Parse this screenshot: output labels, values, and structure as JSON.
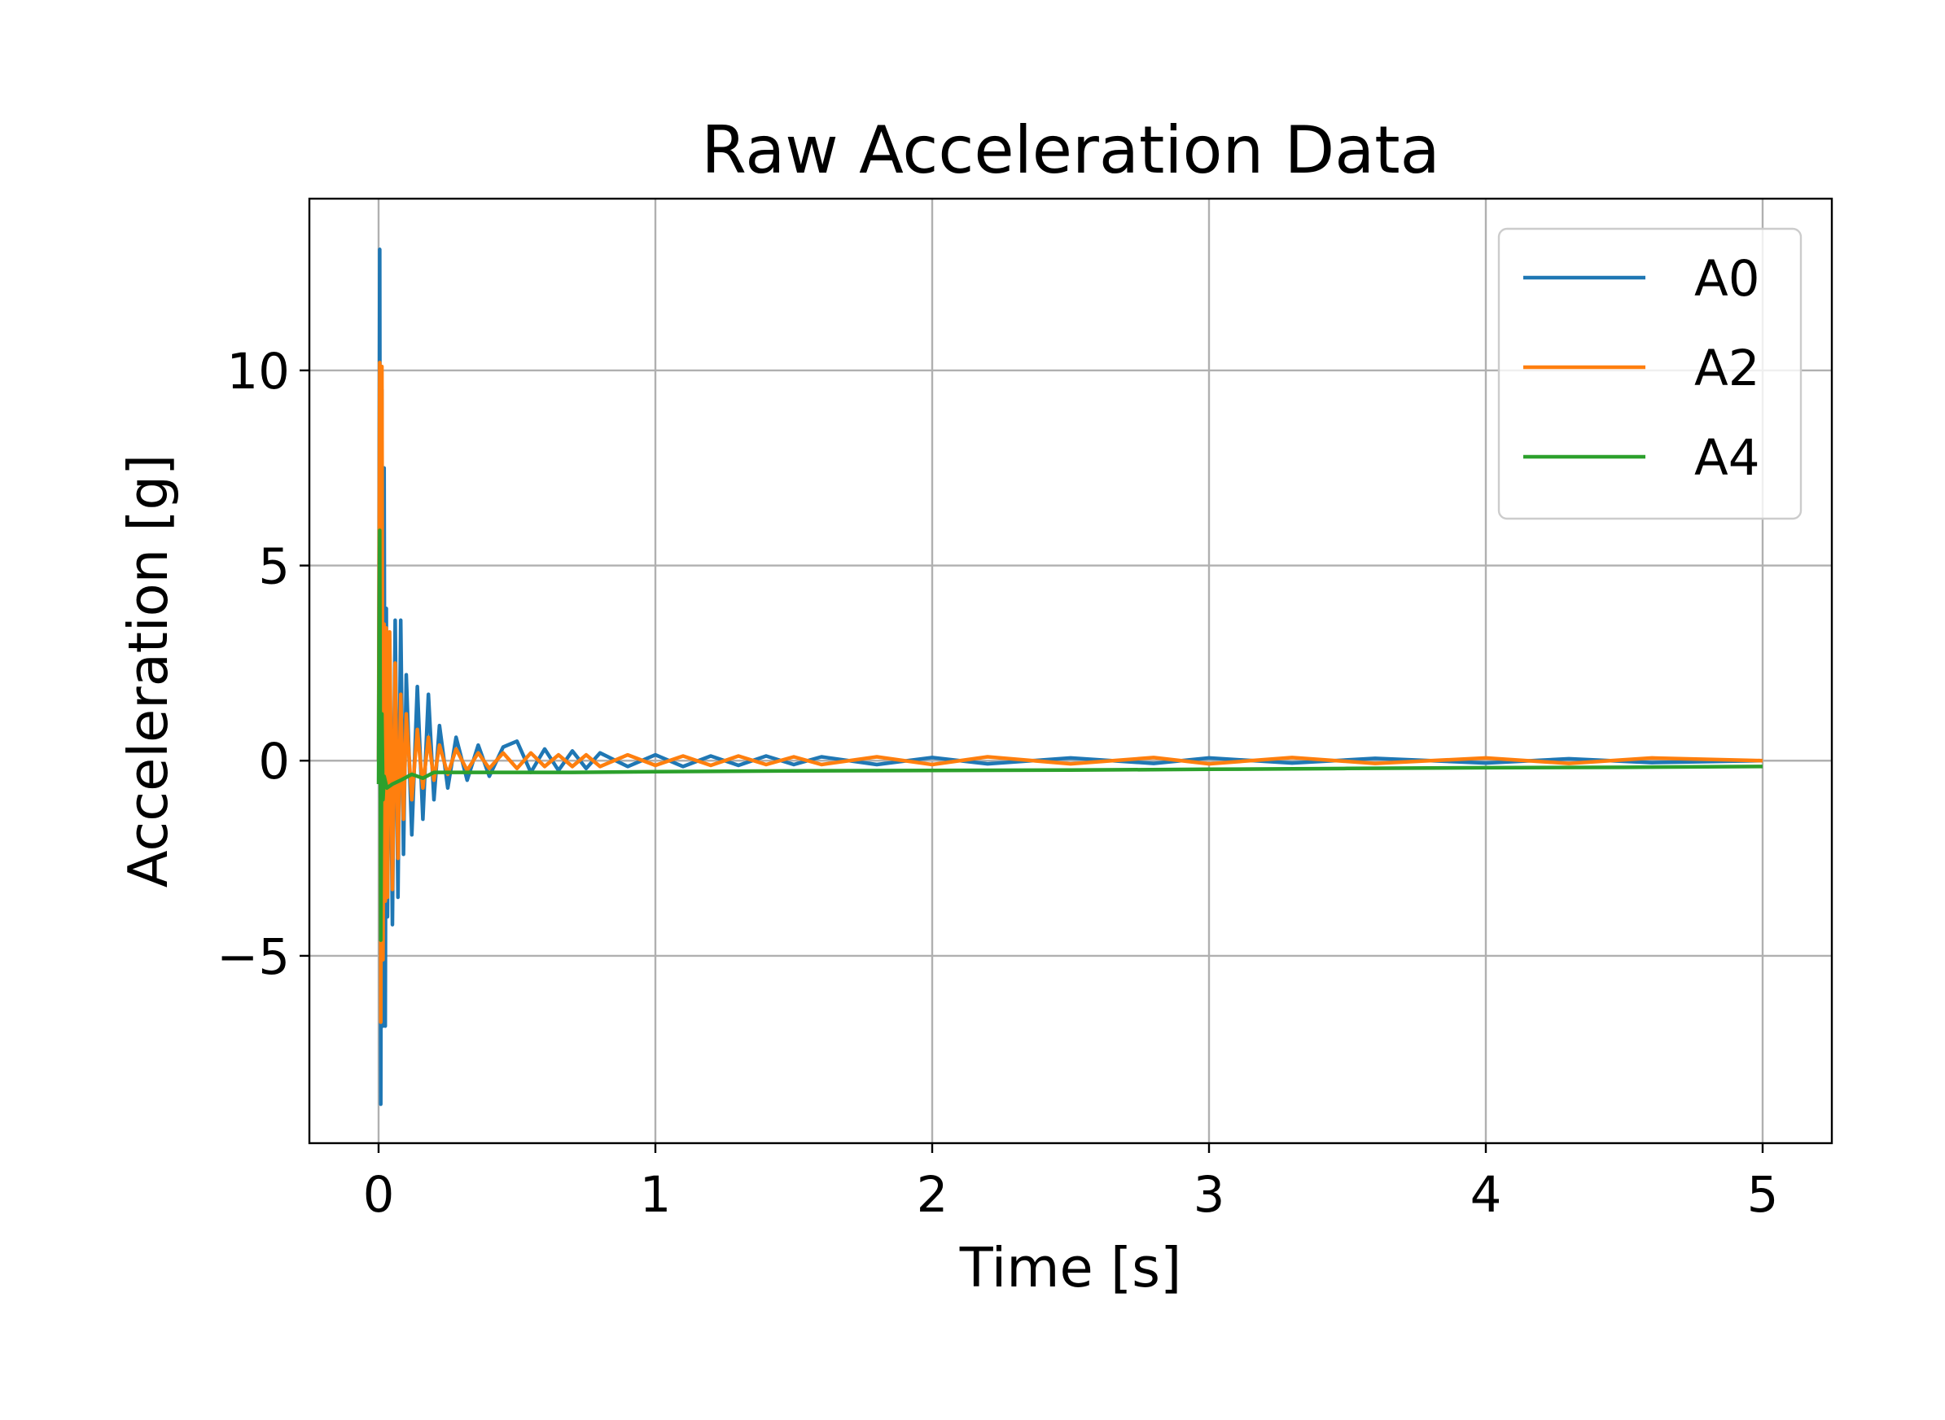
{
  "chart_data": {
    "type": "line",
    "title": "Raw Acceleration Data",
    "xlabel": "Time [s]",
    "ylabel": "Acceleration [g]",
    "xlim": [
      -0.25,
      5.25
    ],
    "ylim": [
      -9.8,
      14.4
    ],
    "xticks": [
      0,
      1,
      2,
      3,
      4,
      5
    ],
    "xtick_labels": [
      "0",
      "1",
      "2",
      "3",
      "4",
      "5"
    ],
    "yticks": [
      -5,
      0,
      5,
      10
    ],
    "ytick_labels": [
      "−5",
      "0",
      "5",
      "10"
    ],
    "grid": true,
    "legend_position": "upper right",
    "series": [
      {
        "name": "A0",
        "color": "#1f77b4",
        "x": [
          0,
          0.004,
          0.008,
          0.012,
          0.016,
          0.02,
          0.024,
          0.028,
          0.032,
          0.04,
          0.05,
          0.06,
          0.07,
          0.08,
          0.09,
          0.1,
          0.12,
          0.14,
          0.16,
          0.18,
          0.2,
          0.22,
          0.25,
          0.28,
          0.32,
          0.36,
          0.4,
          0.45,
          0.5,
          0.55,
          0.6,
          0.65,
          0.7,
          0.75,
          0.8,
          0.9,
          1.0,
          1.1,
          1.2,
          1.3,
          1.4,
          1.5,
          1.6,
          1.8,
          2.0,
          2.2,
          2.5,
          2.8,
          3.0,
          3.3,
          3.6,
          4.0,
          4.3,
          4.6,
          5.0
        ],
        "y": [
          0,
          13.1,
          -8.8,
          9.5,
          -6.8,
          7.5,
          -6.8,
          3.9,
          -4.0,
          3.1,
          -4.2,
          3.6,
          -3.5,
          3.6,
          -2.4,
          2.2,
          -1.9,
          1.9,
          -1.5,
          1.7,
          -1.0,
          0.9,
          -0.7,
          0.6,
          -0.5,
          0.4,
          -0.4,
          0.35,
          0.5,
          -0.3,
          0.3,
          -0.25,
          0.25,
          -0.2,
          0.2,
          -0.15,
          0.15,
          -0.15,
          0.12,
          -0.12,
          0.12,
          -0.1,
          0.1,
          -0.1,
          0.08,
          -0.08,
          0.07,
          -0.07,
          0.07,
          -0.06,
          0.06,
          -0.06,
          0.05,
          -0.05,
          0.0
        ]
      },
      {
        "name": "A2",
        "color": "#ff7f0e",
        "x": [
          0,
          0.004,
          0.008,
          0.012,
          0.016,
          0.02,
          0.024,
          0.028,
          0.032,
          0.04,
          0.05,
          0.06,
          0.07,
          0.08,
          0.09,
          0.1,
          0.12,
          0.14,
          0.16,
          0.18,
          0.2,
          0.22,
          0.25,
          0.28,
          0.32,
          0.36,
          0.4,
          0.45,
          0.5,
          0.55,
          0.6,
          0.65,
          0.7,
          0.75,
          0.8,
          0.9,
          1.0,
          1.1,
          1.2,
          1.3,
          1.4,
          1.5,
          1.6,
          1.8,
          2.0,
          2.2,
          2.5,
          2.8,
          3.0,
          3.3,
          3.6,
          4.0,
          4.3,
          4.6,
          5.0
        ],
        "y": [
          0,
          10.2,
          -6.7,
          10.1,
          -5.1,
          3.5,
          -3.6,
          3.4,
          -3.5,
          3.3,
          -3.3,
          2.5,
          -2.5,
          1.7,
          -1.5,
          1.2,
          -1.0,
          0.8,
          -0.7,
          0.6,
          -0.5,
          0.4,
          -0.35,
          0.3,
          -0.25,
          0.2,
          -0.2,
          0.2,
          -0.2,
          0.2,
          -0.15,
          0.15,
          -0.15,
          0.15,
          -0.15,
          0.15,
          -0.12,
          0.12,
          -0.12,
          0.12,
          -0.1,
          0.1,
          -0.1,
          0.1,
          -0.1,
          0.1,
          -0.08,
          0.08,
          -0.08,
          0.08,
          -0.07,
          0.07,
          -0.07,
          0.07,
          0.0
        ]
      },
      {
        "name": "A4",
        "color": "#2ca02c",
        "x": [
          0,
          0.004,
          0.008,
          0.012,
          0.016,
          0.02,
          0.03,
          0.05,
          0.08,
          0.12,
          0.16,
          0.2,
          0.25,
          0.3,
          0.4,
          0.5,
          0.7,
          1.0,
          1.5,
          2.0,
          2.5,
          3.0,
          3.5,
          4.0,
          4.5,
          5.0
        ],
        "y": [
          -0.6,
          5.9,
          -4.6,
          1.2,
          -1.0,
          -0.4,
          -0.7,
          -0.6,
          -0.5,
          -0.35,
          -0.45,
          -0.3,
          -0.3,
          -0.3,
          -0.3,
          -0.3,
          -0.3,
          -0.28,
          -0.26,
          -0.25,
          -0.24,
          -0.22,
          -0.2,
          -0.18,
          -0.17,
          -0.15
        ]
      }
    ]
  }
}
